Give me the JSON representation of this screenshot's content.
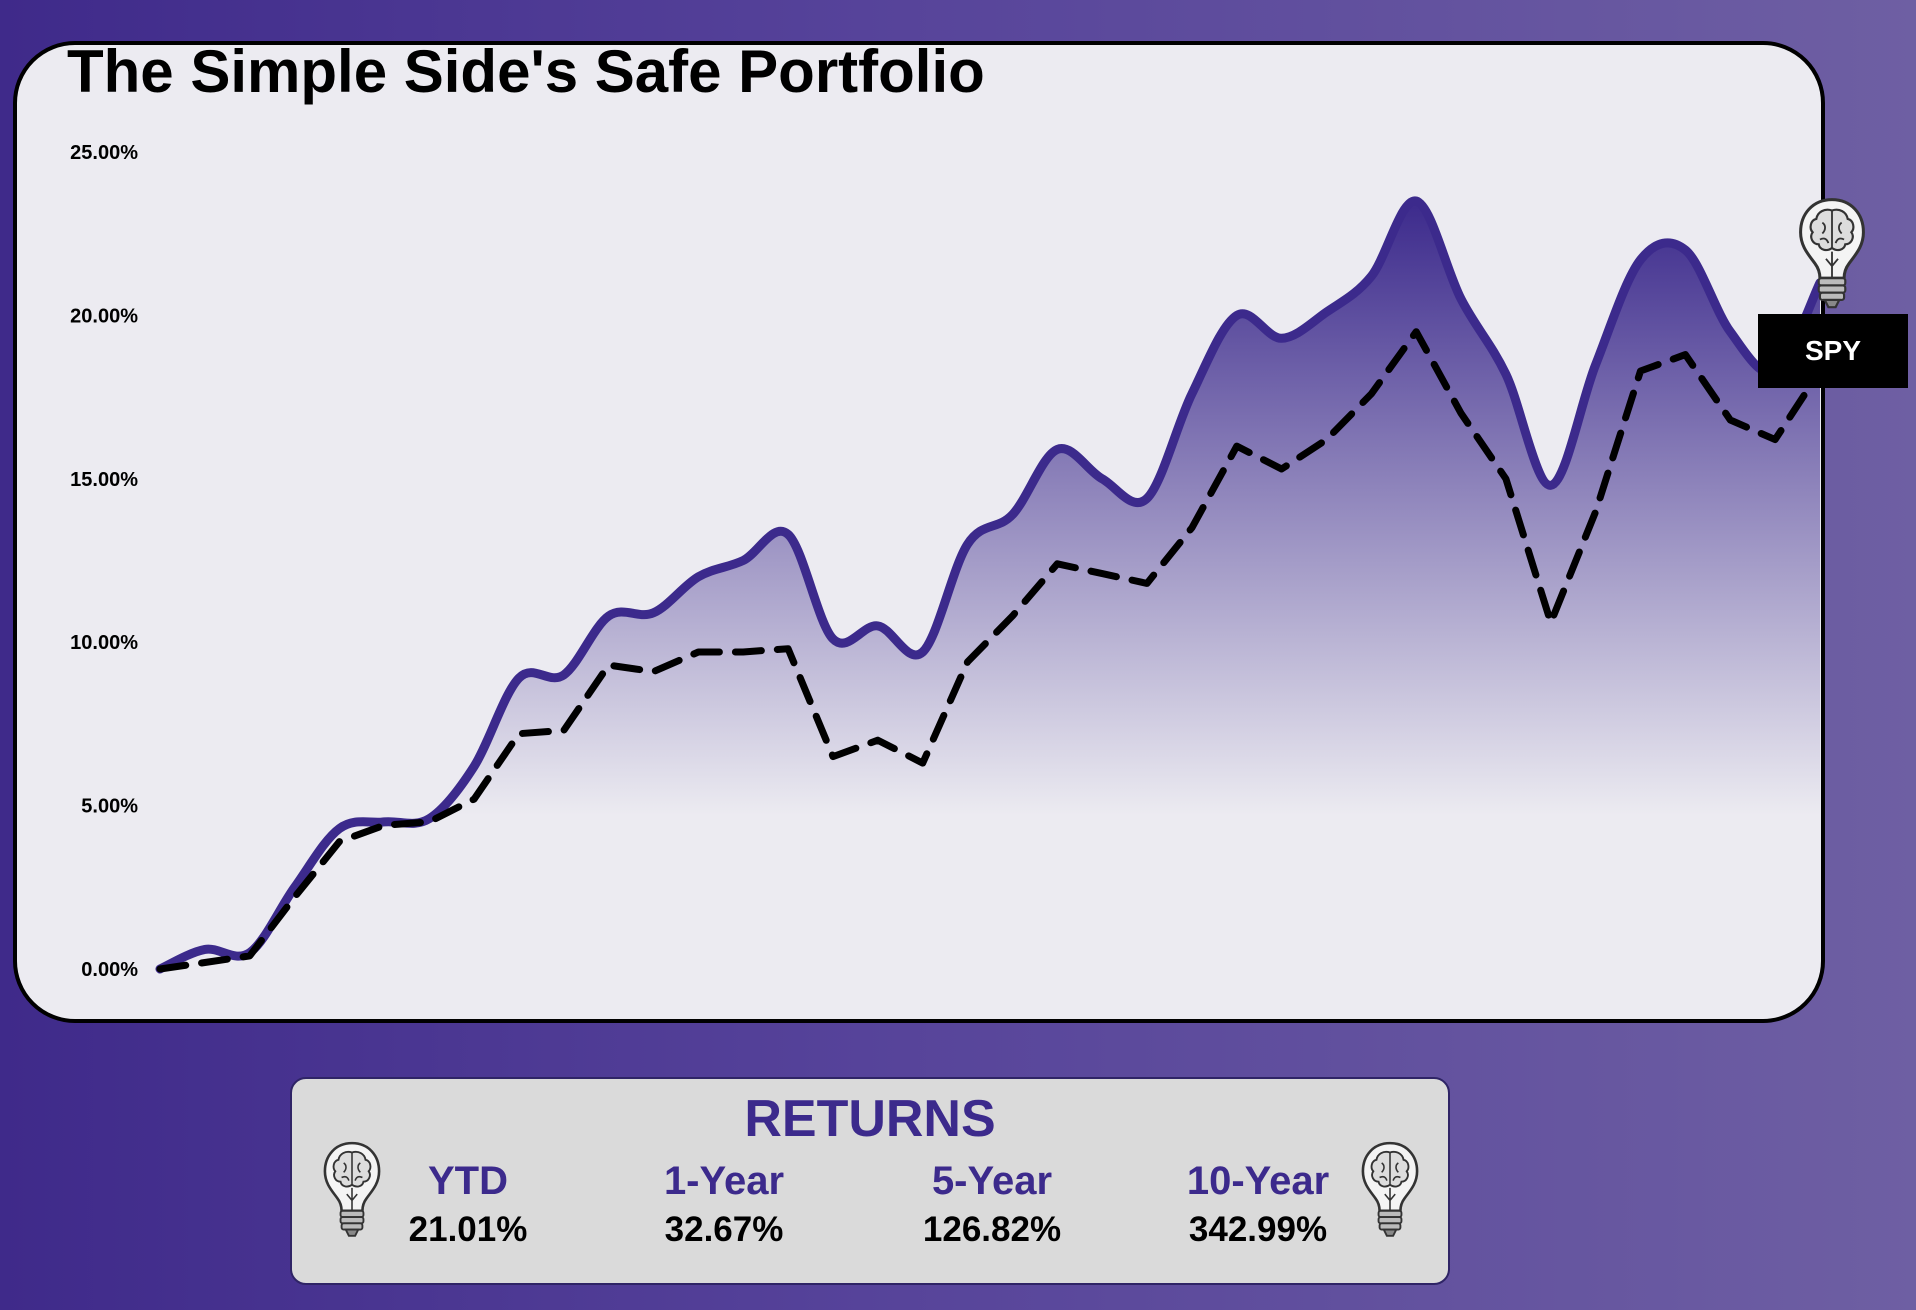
{
  "title": "The Simple Side's Safe Portfolio",
  "colors": {
    "accent": "#3c2a8c",
    "benchmark": "#000000",
    "card": "#ecebf1"
  },
  "icons": [
    "brain-lightbulb-icon"
  ],
  "chart_data": {
    "type": "line",
    "title": "The Simple Side's Safe Portfolio",
    "xlabel": "",
    "ylabel": "",
    "ylim": [
      0,
      25
    ],
    "yticks": [
      "0.00%",
      "5.00%",
      "10.00%",
      "15.00%",
      "20.00%",
      "25.00%"
    ],
    "grid": false,
    "series": [
      {
        "name": "",
        "style": "solid-area",
        "values": [
          0,
          0.6,
          0.5,
          2.5,
          4.3,
          4.5,
          4.6,
          6.2,
          8.9,
          9.0,
          10.8,
          10.9,
          12.0,
          12.5,
          13.3,
          10.1,
          10.5,
          9.7,
          13.0,
          13.9,
          15.9,
          15.0,
          14.4,
          17.6,
          20.0,
          19.3,
          20.1,
          21.2,
          23.5,
          20.5,
          18.2,
          14.8,
          18.5,
          21.7,
          22.0,
          19.5,
          18.3,
          21.0
        ]
      },
      {
        "name": "SPY",
        "style": "dashed",
        "values": [
          0,
          0.2,
          0.4,
          2.2,
          3.9,
          4.4,
          4.5,
          5.2,
          7.2,
          7.3,
          9.3,
          9.1,
          9.7,
          9.7,
          9.8,
          6.5,
          7.0,
          6.3,
          9.4,
          10.8,
          12.4,
          12.1,
          11.8,
          13.5,
          16.0,
          15.3,
          16.2,
          17.6,
          19.5,
          17.0,
          15.0,
          10.6,
          14.0,
          18.3,
          18.8,
          16.8,
          16.2,
          18.3
        ]
      }
    ]
  },
  "legend": {
    "benchmark_label": "SPY"
  },
  "returns": {
    "title": "RETURNS",
    "items": [
      {
        "label": "YTD",
        "value": "21.01%"
      },
      {
        "label": "1-Year",
        "value": "32.67%"
      },
      {
        "label": "5-Year",
        "value": "126.82%"
      },
      {
        "label": "10-Year",
        "value": "342.99%"
      }
    ]
  }
}
